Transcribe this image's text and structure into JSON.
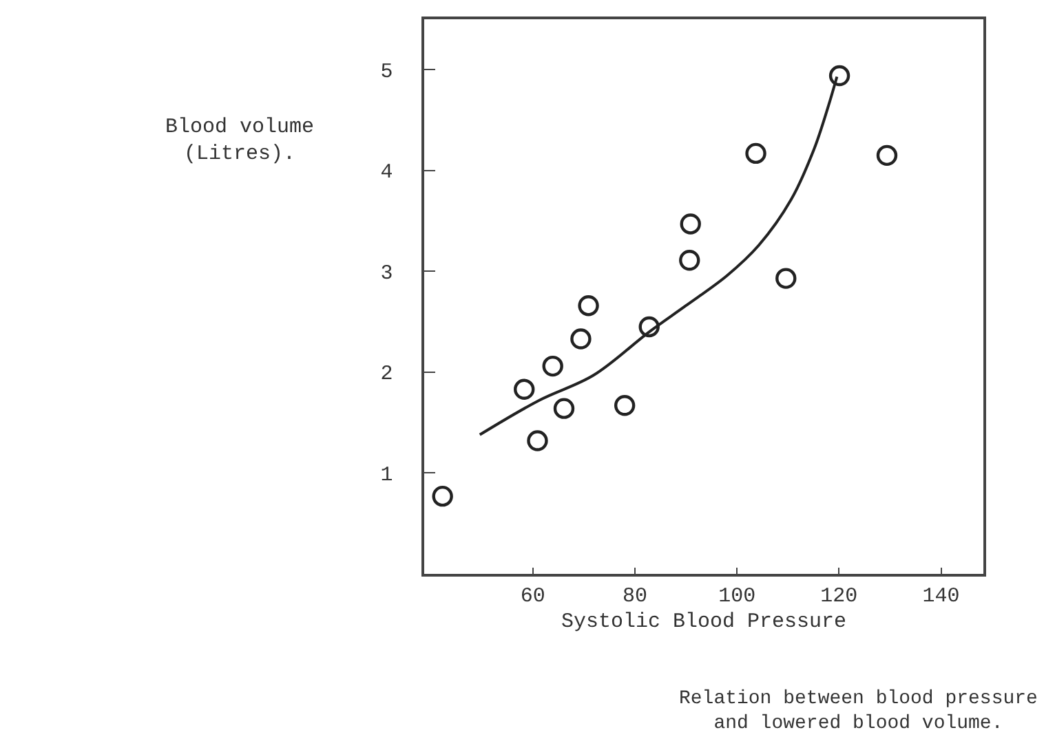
{
  "chart_data": {
    "type": "scatter",
    "xlabel": "Systolic Blood Pressure",
    "ylabel": "Blood volume\n(Litres).",
    "annotations": [
      "Relation between blood pressure\nand lowered blood volume."
    ],
    "xlim": [
      38.7,
      148.3
    ],
    "xticks": [
      60,
      80,
      100,
      120,
      140
    ],
    "ylim": [
      0,
      5.5
    ],
    "yticks": [
      1,
      2,
      3,
      4,
      5
    ],
    "grid": false,
    "legend": false,
    "series": [
      {
        "marker": "circle",
        "color": "#222222",
        "x": [
          42.3,
          58.3,
          63.9,
          60.9,
          66.1,
          69.4,
          70.9,
          78,
          82.8,
          90.7,
          90.9,
          109.6,
          103.7,
          120.1,
          129.4
        ],
        "values": [
          0.77,
          1.83,
          2.06,
          1.32,
          1.64,
          2.33,
          2.66,
          1.67,
          2.45,
          3.11,
          3.47,
          2.93,
          4.17,
          4.94,
          4.15
        ]
      },
      {
        "type": "line",
        "color": "#222222",
        "line_style": "solid",
        "x": [
          49.6,
          61.2,
          71.9,
          82.8,
          90,
          98.1,
          104.3,
          110.6,
          115.1,
          117.8,
          119.6
        ],
        "values": [
          1.38,
          1.72,
          1.97,
          2.4,
          2.66,
          2.96,
          3.26,
          3.71,
          4.21,
          4.62,
          4.93
        ]
      }
    ]
  }
}
